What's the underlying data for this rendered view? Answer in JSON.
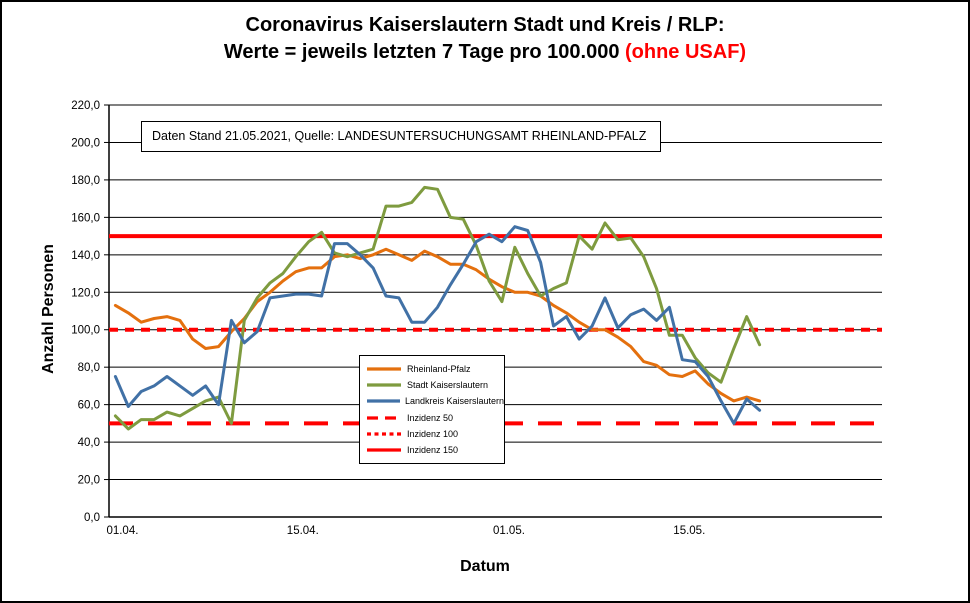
{
  "header": {
    "line1": "Coronavirus Kaiserslautern Stadt und Kreis / RLP:",
    "line2": "Werte = jeweils letzten 7 Tage pro 100.000 ",
    "line2_highlight": "(ohne USAF)"
  },
  "annotation": {
    "text": "Daten Stand 21.05.2021, Quelle: LANDESUNTERSUCHUNGSAMT RHEINLAND-PFALZ"
  },
  "axes": {
    "y_title": "Anzahl Personen",
    "x_title": "Datum"
  },
  "chart_data": {
    "type": "line",
    "title": "Coronavirus Kaiserslautern Stadt und Kreis / RLP: Werte = jeweils letzten 7 Tage pro 100.000 (ohne USAF)",
    "xlabel": "Datum",
    "ylabel": "Anzahl Personen",
    "ylim": [
      0,
      220
    ],
    "ystep": 20,
    "grid": "horizontal",
    "legend_position": "center",
    "x_period": "01.04.2021 bis 21.05.2021, 1 Punkt pro Tag",
    "n_points": 51,
    "y_ticks": [
      "0,0",
      "20,0",
      "40,0",
      "60,0",
      "80,0",
      "100,0",
      "120,0",
      "140,0",
      "160,0",
      "180,0",
      "200,0",
      "220,0"
    ],
    "x_ticks": [
      {
        "label": "01.04.",
        "day": 0
      },
      {
        "label": "15.04.",
        "day": 14
      },
      {
        "label": "01.05.",
        "day": 30
      },
      {
        "label": "15.05.",
        "day": 44
      }
    ],
    "series": [
      {
        "name": "Rheinland-Pfalz",
        "color": "#E4700E",
        "style": "solid",
        "values": [
          113,
          109,
          104,
          106,
          107,
          105,
          95,
          90,
          91,
          99,
          106,
          115,
          120,
          126,
          131,
          133,
          133,
          139,
          140,
          138,
          140,
          143,
          140,
          137,
          142,
          139,
          135,
          135,
          132,
          127,
          123,
          120,
          120,
          118,
          113,
          109,
          104,
          100,
          100,
          96,
          91,
          83,
          81,
          76,
          75,
          78,
          71,
          66,
          62,
          64,
          62
        ]
      },
      {
        "name": "Stadt Kaiserslautern",
        "color": "#7E9B3F",
        "style": "solid",
        "values": [
          54,
          47,
          52,
          52,
          56,
          54,
          58,
          62,
          64,
          50,
          105,
          117,
          125,
          130,
          139,
          147,
          152,
          141,
          139,
          141,
          143,
          166,
          166,
          168,
          176,
          175,
          160,
          159,
          145,
          126,
          115,
          144,
          130,
          118,
          122,
          125,
          150,
          143,
          157,
          148,
          149,
          139,
          122,
          97,
          97,
          85,
          77,
          72,
          90,
          107,
          92
        ]
      },
      {
        "name": "Landkreis Kaiserslautern",
        "color": "#4171A6",
        "style": "solid",
        "values": [
          75,
          59,
          67,
          70,
          75,
          70,
          65,
          70,
          60,
          105,
          93,
          99,
          117,
          118,
          119,
          119,
          118,
          146,
          146,
          140,
          133,
          118,
          117,
          104,
          104,
          112,
          124,
          135,
          147,
          151,
          147,
          155,
          153,
          136,
          102,
          107,
          95,
          102,
          117,
          101,
          108,
          111,
          105,
          112,
          84,
          83,
          75,
          62,
          50,
          63,
          57
        ]
      }
    ],
    "reference_lines": [
      {
        "name": "Inzidenz 50",
        "value": 50,
        "color": "#FF0000",
        "style": "long-dash"
      },
      {
        "name": "Inzidenz 100",
        "value": 100,
        "color": "#FF0000",
        "style": "short-dash"
      },
      {
        "name": "Inzidenz 150",
        "value": 150,
        "color": "#FF0000",
        "style": "solid"
      }
    ]
  }
}
